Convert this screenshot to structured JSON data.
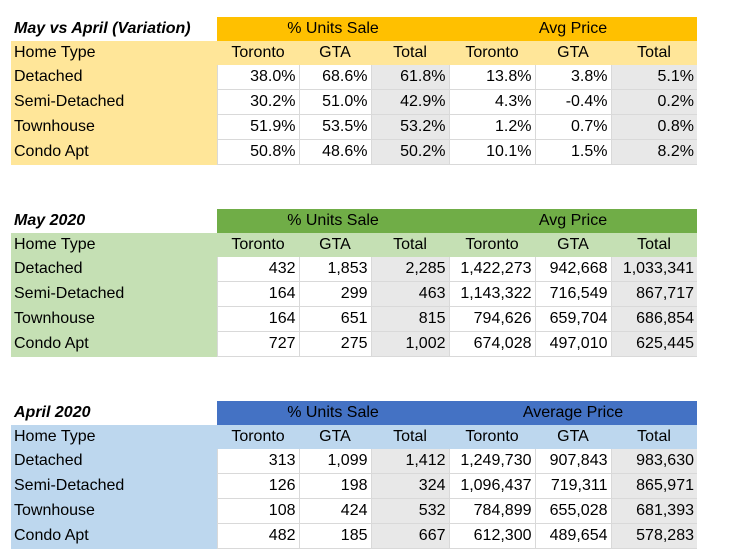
{
  "tables": [
    {
      "title": "May vs April (Variation)",
      "group1": "% Units Sale",
      "group2": "Avg Price",
      "columns": [
        "Home Type",
        "Toronto",
        "GTA",
        "Total",
        "Toronto",
        "GTA",
        "Total"
      ],
      "rows": [
        [
          "Detached",
          "38.0%",
          "68.6%",
          "61.8%",
          "13.8%",
          "3.8%",
          "5.1%"
        ],
        [
          "Semi-Detached",
          "30.2%",
          "51.0%",
          "42.9%",
          "4.3%",
          "-0.4%",
          "0.2%"
        ],
        [
          "Townhouse",
          "51.9%",
          "53.5%",
          "53.2%",
          "1.2%",
          "0.7%",
          "0.8%"
        ],
        [
          "Condo Apt",
          "50.8%",
          "48.6%",
          "50.2%",
          "10.1%",
          "1.5%",
          "8.2%"
        ]
      ],
      "colors": {
        "banner": "#ffc000",
        "label_bg": "#ffe699"
      }
    },
    {
      "title": "May 2020",
      "group1": "% Units Sale",
      "group2": "Avg Price",
      "columns": [
        "Home Type",
        "Toronto",
        "GTA",
        "Total",
        "Toronto",
        "GTA",
        "Total"
      ],
      "rows": [
        [
          "Detached",
          "432",
          "1,853",
          "2,285",
          "1,422,273",
          "942,668",
          "1,033,341"
        ],
        [
          "Semi-Detached",
          "164",
          "299",
          "463",
          "1,143,322",
          "716,549",
          "867,717"
        ],
        [
          "Townhouse",
          "164",
          "651",
          "815",
          "794,626",
          "659,704",
          "686,854"
        ],
        [
          "Condo Apt",
          "727",
          "275",
          "1,002",
          "674,028",
          "497,010",
          "625,445"
        ]
      ],
      "colors": {
        "banner": "#70ad47",
        "label_bg": "#c5e0b4"
      }
    },
    {
      "title": "April 2020",
      "group1": "% Units Sale",
      "group2": "Average Price",
      "columns": [
        "Home Type",
        "Toronto",
        "GTA",
        "Total",
        "Toronto",
        "GTA",
        "Total"
      ],
      "rows": [
        [
          "Detached",
          "313",
          "1,099",
          "1,412",
          "1,249,730",
          "907,843",
          "983,630"
        ],
        [
          "Semi-Detached",
          "126",
          "198",
          "324",
          "1,096,437",
          "719,311",
          "865,971"
        ],
        [
          "Townhouse",
          "108",
          "424",
          "532",
          "784,899",
          "655,028",
          "681,393"
        ],
        [
          "Condo Apt",
          "482",
          "185",
          "667",
          "612,300",
          "489,654",
          "578,283"
        ]
      ],
      "colors": {
        "banner": "#4472c4",
        "label_bg": "#bdd7ee"
      }
    }
  ]
}
